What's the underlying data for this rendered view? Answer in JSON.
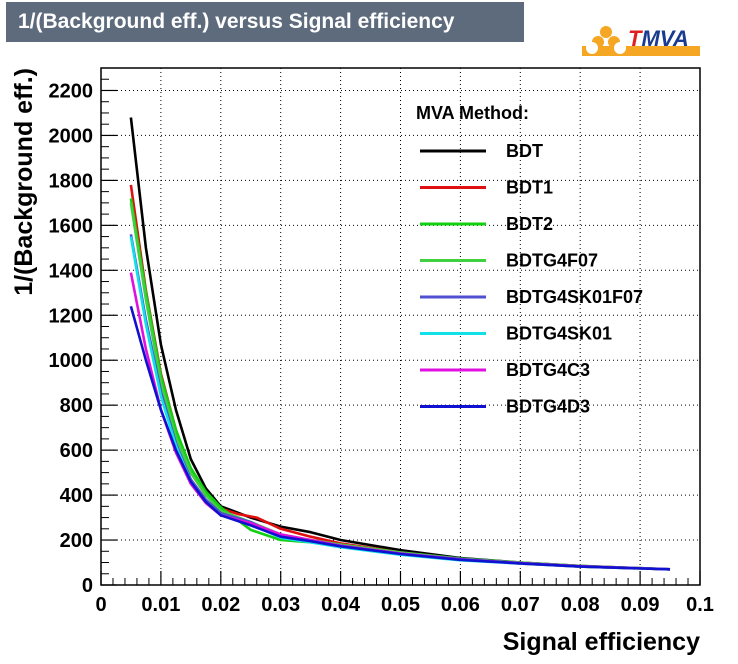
{
  "header": {
    "title": "1/(Background eff.) versus Signal efficiency",
    "logo_prefix": "T",
    "logo_suffix": "MVA"
  },
  "chart_data": {
    "type": "line",
    "title": "1/(Background eff.) versus Signal efficiency",
    "xlabel": "Signal efficiency",
    "ylabel": "1/(Background eff.)",
    "xlim": [
      0,
      0.1
    ],
    "ylim": [
      0,
      2300
    ],
    "x_ticks": [
      "0",
      "0.01",
      "0.02",
      "0.03",
      "0.04",
      "0.05",
      "0.06",
      "0.07",
      "0.08",
      "0.09",
      "0.1"
    ],
    "y_ticks": [
      "0",
      "200",
      "400",
      "600",
      "800",
      "1000",
      "1200",
      "1400",
      "1600",
      "1800",
      "2000",
      "2200"
    ],
    "grid": true,
    "legend_title": "MVA Method:",
    "legend_position": "top-right",
    "series": [
      {
        "name": "BDT",
        "color": "#000000",
        "x": [
          0.005,
          0.0075,
          0.01,
          0.0125,
          0.015,
          0.0175,
          0.02,
          0.025,
          0.03,
          0.035,
          0.04,
          0.05,
          0.06,
          0.07,
          0.08,
          0.095
        ],
        "y": [
          2080,
          1500,
          1070,
          780,
          560,
          430,
          350,
          300,
          260,
          235,
          200,
          155,
          120,
          100,
          85,
          70
        ]
      },
      {
        "name": "BDT1",
        "color": "#e01010",
        "x": [
          0.005,
          0.0075,
          0.01,
          0.0125,
          0.015,
          0.0175,
          0.02,
          0.023,
          0.026,
          0.03,
          0.035,
          0.04,
          0.05,
          0.06,
          0.07,
          0.08,
          0.095
        ],
        "y": [
          1780,
          1310,
          940,
          690,
          500,
          400,
          340,
          315,
          300,
          250,
          215,
          185,
          145,
          115,
          95,
          82,
          70
        ]
      },
      {
        "name": "BDT2",
        "color": "#10d010",
        "x": [
          0.005,
          0.0075,
          0.01,
          0.0125,
          0.015,
          0.0175,
          0.02,
          0.025,
          0.03,
          0.035,
          0.04,
          0.05,
          0.06,
          0.07,
          0.08,
          0.095
        ],
        "y": [
          1720,
          1300,
          930,
          690,
          520,
          415,
          345,
          245,
          200,
          190,
          175,
          140,
          112,
          98,
          82,
          70
        ]
      },
      {
        "name": "BDTG4F07",
        "color": "#40d040",
        "x": [
          0.005,
          0.0075,
          0.01,
          0.0125,
          0.015,
          0.0175,
          0.02,
          0.025,
          0.03,
          0.035,
          0.04,
          0.05,
          0.06,
          0.07,
          0.08,
          0.095
        ],
        "y": [
          1700,
          1270,
          900,
          660,
          500,
          400,
          330,
          280,
          225,
          200,
          180,
          145,
          118,
          100,
          85,
          70
        ]
      },
      {
        "name": "BDTG4SK01F07",
        "color": "#5050d0",
        "x": [
          0.005,
          0.0075,
          0.01,
          0.0125,
          0.015,
          0.0175,
          0.02,
          0.025,
          0.03,
          0.035,
          0.04,
          0.05,
          0.06,
          0.07,
          0.08,
          0.095
        ],
        "y": [
          1560,
          1180,
          860,
          630,
          470,
          380,
          320,
          280,
          215,
          195,
          172,
          140,
          115,
          98,
          83,
          70
        ]
      },
      {
        "name": "BDTG4SK01",
        "color": "#10e0e8",
        "x": [
          0.005,
          0.0075,
          0.01,
          0.0125,
          0.015,
          0.0175,
          0.02,
          0.025,
          0.03,
          0.035,
          0.04,
          0.05,
          0.06,
          0.07,
          0.08,
          0.095
        ],
        "y": [
          1550,
          1160,
          840,
          620,
          460,
          370,
          310,
          270,
          210,
          190,
          168,
          135,
          110,
          95,
          82,
          70
        ]
      },
      {
        "name": "BDTG4C3",
        "color": "#e010e0",
        "x": [
          0.005,
          0.0075,
          0.01,
          0.0125,
          0.015,
          0.0175,
          0.02,
          0.025,
          0.03,
          0.035,
          0.04,
          0.05,
          0.06,
          0.07,
          0.08,
          0.095
        ],
        "y": [
          1390,
          1050,
          780,
          590,
          450,
          365,
          310,
          275,
          225,
          200,
          175,
          140,
          113,
          97,
          83,
          70
        ]
      },
      {
        "name": "BDTG4D3",
        "color": "#1010d0",
        "x": [
          0.005,
          0.0075,
          0.01,
          0.0125,
          0.015,
          0.0175,
          0.02,
          0.025,
          0.03,
          0.035,
          0.04,
          0.05,
          0.06,
          0.07,
          0.08,
          0.095
        ],
        "y": [
          1240,
          1000,
          780,
          600,
          460,
          370,
          310,
          265,
          215,
          195,
          172,
          138,
          112,
          96,
          82,
          70
        ]
      }
    ]
  }
}
